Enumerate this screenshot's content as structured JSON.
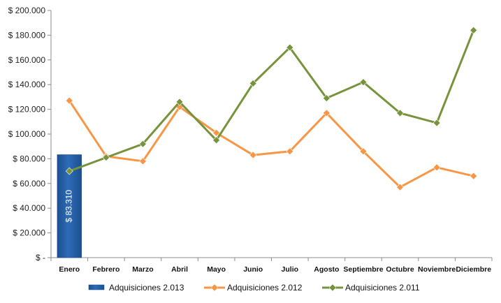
{
  "chart_data": {
    "type": "bar+line",
    "categories": [
      "Enero",
      "Febrero",
      "Marzo",
      "Abril",
      "Mayo",
      "Junio",
      "Julio",
      "Agosto",
      "Septiembre",
      "Octubre",
      "Noviembre",
      "Diciembre"
    ],
    "y_tick_labels": [
      "$ -",
      "$ 20.000",
      "$ 40.000",
      "$ 60.000",
      "$ 80.000",
      "$ 100.000",
      "$ 120.000",
      "$ 140.000",
      "$ 160.000",
      "$ 180.000",
      "$ 200.000"
    ],
    "ylim": [
      0,
      200000
    ],
    "grid": false,
    "legend_position": "bottom",
    "bar_series": {
      "name": "Adquisiciones 2.013",
      "color": "#2e6bb8",
      "values": [
        83310
      ],
      "data_labels": [
        "$ 83.310"
      ]
    },
    "series": [
      {
        "name": "Adquisiciones 2.012",
        "color": "#f79646",
        "marker_color": "#f79646",
        "values": [
          127000,
          82000,
          78000,
          122000,
          101000,
          83000,
          86000,
          117000,
          86000,
          57000,
          73000,
          66000
        ]
      },
      {
        "name": "Adquisiciones 2.011",
        "color": "#77933c",
        "marker_color": "#77933c",
        "values": [
          70000,
          81000,
          92000,
          126000,
          95000,
          141000,
          170000,
          129000,
          142000,
          117000,
          109000,
          184000
        ]
      }
    ]
  }
}
